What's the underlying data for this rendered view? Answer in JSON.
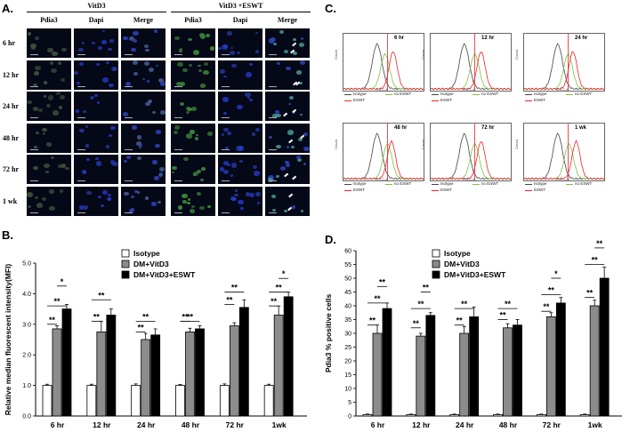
{
  "panel_a": {
    "letter": "A.",
    "groups": [
      "VitD3",
      "VitD3 +ESWT"
    ],
    "channels": [
      "Pdia3",
      "Dapi",
      "Merge"
    ],
    "rows": [
      "6 hr",
      "12 hr",
      "24 hr",
      "48 hr",
      "72 hr",
      "1 wk"
    ]
  },
  "panel_c": {
    "letter": "C.",
    "panels": [
      {
        "time": "6 hr"
      },
      {
        "time": "12 hr"
      },
      {
        "time": "24 hr"
      },
      {
        "time": "48 hr"
      },
      {
        "time": "72 hr"
      },
      {
        "time": "1 wk"
      }
    ],
    "ylabel": "Count",
    "xlabel": "FITC-A",
    "legend": [
      "Isotype",
      "no ESWT",
      "ESWT"
    ],
    "colors": {
      "isotype": "#444444",
      "no_eswt": "#7cc242",
      "eswt": "#e8252a"
    }
  },
  "panel_b": {
    "letter": "B.",
    "legend": [
      "Isotype",
      "DM+VitD3",
      "DM+VitD3+ESWT"
    ]
  },
  "panel_d": {
    "letter": "D.",
    "legend": [
      "Isotype",
      "DM+VitD3",
      "DM+VitD3+ESWT"
    ]
  },
  "chart_data": [
    {
      "type": "bar",
      "title": "",
      "xlabel": "",
      "ylabel": "Relative median fluorescent intensity(MFI)",
      "ylim": [
        0,
        5
      ],
      "yticks": [
        "0.0",
        "1.0",
        "2.0",
        "3.0",
        "4.0",
        "5.0"
      ],
      "categories": [
        "6 hr",
        "12 hr",
        "24 hr",
        "48 hr",
        "72 hr",
        "1wk"
      ],
      "series": [
        {
          "name": "Isotype",
          "color": "#ffffff",
          "values": [
            1.0,
            1.0,
            1.0,
            1.0,
            1.0,
            1.0
          ],
          "errors": [
            0.04,
            0.04,
            0.05,
            0.03,
            0.05,
            0.04
          ]
        },
        {
          "name": "DM+VitD3",
          "color": "#8c8c8c",
          "values": [
            2.85,
            2.75,
            2.5,
            2.75,
            2.95,
            3.3
          ],
          "errors": [
            0.1,
            0.35,
            0.2,
            0.12,
            0.1,
            0.3
          ]
        },
        {
          "name": "DM+VitD3+ESWT",
          "color": "#000000",
          "values": [
            3.5,
            3.3,
            2.65,
            2.85,
            3.55,
            3.9
          ],
          "errors": [
            0.15,
            0.2,
            0.2,
            0.1,
            0.25,
            0.15
          ]
        }
      ],
      "significance": [
        [
          {
            "label": "**",
            "y": 3.0
          },
          {
            "label": "**",
            "y": 3.6
          },
          {
            "label": "*",
            "y": 4.25
          }
        ],
        [
          {
            "label": "**",
            "y": 3.1
          },
          {
            "label": "**",
            "y": 3.8
          }
        ],
        [
          {
            "label": "**",
            "y": 2.75
          },
          {
            "label": "**",
            "y": 3.1
          }
        ],
        [
          {
            "label": "**",
            "y": 3.1
          },
          {
            "label": "**",
            "y": 3.1
          }
        ],
        [
          {
            "label": "**",
            "y": 3.65
          },
          {
            "label": "**",
            "y": 4.05
          }
        ],
        [
          {
            "label": "**",
            "y": 3.6
          },
          {
            "label": "**",
            "y": 4.05
          },
          {
            "label": "*",
            "y": 4.5
          }
        ]
      ]
    },
    {
      "type": "bar",
      "title": "",
      "xlabel": "",
      "ylabel": "Pdia3 % positive cells",
      "ylim": [
        0,
        60
      ],
      "yticks": [
        "0",
        "5",
        "10",
        "15",
        "20",
        "25",
        "30",
        "35",
        "40",
        "45",
        "50",
        "55",
        "60"
      ],
      "categories": [
        "6 hr",
        "12 hr",
        "24 hr",
        "48 hr",
        "72 hr",
        "1wk"
      ],
      "series": [
        {
          "name": "Isotype",
          "color": "#ffffff",
          "values": [
            0.5,
            0.5,
            0.5,
            0.5,
            0.5,
            0.5
          ],
          "errors": [
            0.2,
            0.2,
            0.2,
            0.2,
            0.2,
            0.2
          ]
        },
        {
          "name": "DM+VitD3",
          "color": "#8c8c8c",
          "values": [
            30,
            29,
            30,
            32,
            36,
            40
          ],
          "errors": [
            3,
            1,
            2.5,
            1.5,
            1.5,
            2
          ]
        },
        {
          "name": "DM+VitD3+ESWT",
          "color": "#000000",
          "values": [
            39,
            36.5,
            36,
            33,
            41,
            50
          ],
          "errors": [
            2,
            1,
            3.5,
            2,
            2,
            4
          ]
        }
      ],
      "significance": [
        [
          {
            "label": "**",
            "y": 33
          },
          {
            "label": "**",
            "y": 41
          },
          {
            "label": "**",
            "y": 47
          }
        ],
        [
          {
            "label": "**",
            "y": 32
          },
          {
            "label": "**",
            "y": 39
          },
          {
            "label": "**",
            "y": 45
          }
        ],
        [
          {
            "label": "**",
            "y": 33
          },
          {
            "label": "**",
            "y": 39
          }
        ],
        [
          {
            "label": "**",
            "y": 35
          },
          {
            "label": "**",
            "y": 39
          }
        ],
        [
          {
            "label": "**",
            "y": 38
          },
          {
            "label": "**",
            "y": 44
          },
          {
            "label": "*",
            "y": 50
          }
        ],
        [
          {
            "label": "**",
            "y": 43
          },
          {
            "label": "**",
            "y": 55
          },
          {
            "label": "**",
            "y": 61
          }
        ]
      ]
    }
  ]
}
